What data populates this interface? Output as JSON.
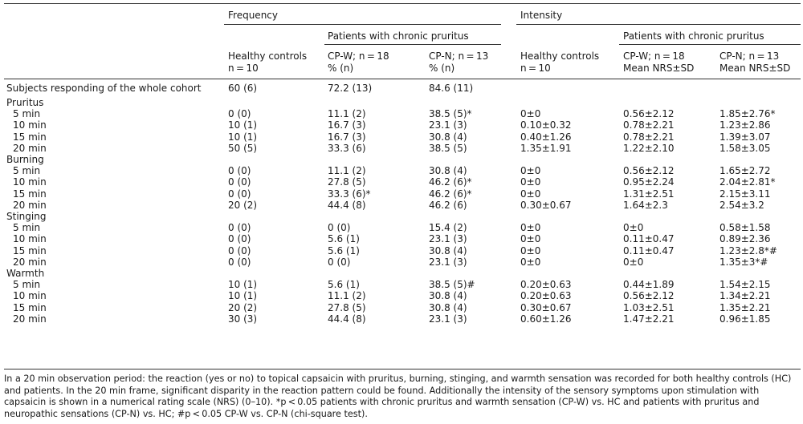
{
  "headers": {
    "frequency": "Frequency",
    "intensity": "Intensity",
    "patients_freq": "Patients with chronic pruritus",
    "patients_int": "Patients with chronic pruritus",
    "hc_freq_1": "Healthy controls",
    "hc_freq_2": "n = 10",
    "cpw_freq_1": "CP-W; n = 18",
    "cpw_freq_2": "% (n)",
    "cpn_freq_1": "CP-N; n = 13",
    "cpn_freq_2": "% (n)",
    "hc_int_1": "Healthy controls",
    "hc_int_2": "n = 10",
    "cpw_int_1": "CP-W; n = 18",
    "cpw_int_2": "Mean NRS±SD",
    "cpn_int_1": "CP-N; n = 13",
    "cpn_int_2": "Mean NRS±SD"
  },
  "whole_cohort": {
    "label": "Subjects responding of the whole cohort",
    "hc": "60 (6)",
    "cpw": "72.2 (13)",
    "cpn": "84.6 (11)"
  },
  "groups": [
    {
      "name": "Pruritus",
      "rows": [
        {
          "time": "5 min",
          "hc": "0 (0)",
          "cpw": "11.1 (2)",
          "cpn": "38.5 (5)*",
          "hc_i": "0±0",
          "cpw_i": "0.56±2.12",
          "cpn_i": "1.85±2.76*"
        },
        {
          "time": "10 min",
          "hc": "10 (1)",
          "cpw": "16.7 (3)",
          "cpn": "23.1 (3)",
          "hc_i": "0.10±0.32",
          "cpw_i": "0.78±2.21",
          "cpn_i": "1.23±2.86"
        },
        {
          "time": "15 min",
          "hc": "10 (1)",
          "cpw": "16.7 (3)",
          "cpn": "30.8 (4)",
          "hc_i": "0.40±1.26",
          "cpw_i": "0.78±2.21",
          "cpn_i": "1.39±3.07"
        },
        {
          "time": "20 min",
          "hc": "50 (5)",
          "cpw": "33.3 (6)",
          "cpn": "38.5 (5)",
          "hc_i": "1.35±1.91",
          "cpw_i": "1.22±2.10",
          "cpn_i": "1.58±3.05"
        }
      ]
    },
    {
      "name": "Burning",
      "rows": [
        {
          "time": "5 min",
          "hc": "0 (0)",
          "cpw": "11.1 (2)",
          "cpn": "30.8 (4)",
          "hc_i": "0±0",
          "cpw_i": "0.56±2.12",
          "cpn_i": "1.65±2.72"
        },
        {
          "time": "10 min",
          "hc": "0 (0)",
          "cpw": "27.8 (5)",
          "cpn": "46.2 (6)*",
          "hc_i": "0±0",
          "cpw_i": "0.95±2.24",
          "cpn_i": "2.04±2.81*"
        },
        {
          "time": "15 min",
          "hc": "0 (0)",
          "cpw": "33.3 (6)*",
          "cpn": "46.2 (6)*",
          "hc_i": "0±0",
          "cpw_i": "1.31±2.51",
          "cpn_i": "2.15±3.11"
        },
        {
          "time": "20 min",
          "hc": "20 (2)",
          "cpw": "44.4 (8)",
          "cpn": "46.2 (6)",
          "hc_i": "0.30±0.67",
          "cpw_i": "1.64±2.3",
          "cpn_i": "2.54±3.2"
        }
      ]
    },
    {
      "name": "Stinging",
      "rows": [
        {
          "time": "5 min",
          "hc": "0 (0)",
          "cpw": "0 (0)",
          "cpn": "15.4 (2)",
          "hc_i": "0±0",
          "cpw_i": "0±0",
          "cpn_i": "0.58±1.58"
        },
        {
          "time": "10 min",
          "hc": "0 (0)",
          "cpw": "5.6 (1)",
          "cpn": "23.1 (3)",
          "hc_i": "0±0",
          "cpw_i": "0.11±0.47",
          "cpn_i": "0.89±2.36"
        },
        {
          "time": "15 min",
          "hc": "0 (0)",
          "cpw": "5.6 (1)",
          "cpn": "30.8 (4)",
          "hc_i": "0±0",
          "cpw_i": "0.11±0.47",
          "cpn_i": "1.23±2.8*#"
        },
        {
          "time": "20 min",
          "hc": "0 (0)",
          "cpw": "0 (0)",
          "cpn": "23.1 (3)",
          "hc_i": "0±0",
          "cpw_i": "0±0",
          "cpn_i": "1.35±3*#"
        }
      ]
    },
    {
      "name": "Warmth",
      "rows": [
        {
          "time": "5 min",
          "hc": "10 (1)",
          "cpw": "5.6 (1)",
          "cpn": "38.5 (5)#",
          "hc_i": "0.20±0.63",
          "cpw_i": "0.44±1.89",
          "cpn_i": "1.54±2.15"
        },
        {
          "time": "10 min",
          "hc": "10 (1)",
          "cpw": "11.1 (2)",
          "cpn": "30.8 (4)",
          "hc_i": "0.20±0.63",
          "cpw_i": "0.56±2.12",
          "cpn_i": "1.34±2.21"
        },
        {
          "time": "15 min",
          "hc": "20 (2)",
          "cpw": "27.8 (5)",
          "cpn": "30.8 (4)",
          "hc_i": "0.30±0.67",
          "cpw_i": "1.03±2.51",
          "cpn_i": "1.35±2.21"
        },
        {
          "time": "20 min",
          "hc": "30 (3)",
          "cpw": "44.4 (8)",
          "cpn": "23.1 (3)",
          "hc_i": "0.60±1.26",
          "cpw_i": "1.47±2.21",
          "cpn_i": "0.96±1.85"
        }
      ]
    }
  ],
  "footnote": "In a 20 min observation period: the reaction (yes or no) to topical capsaicin with pruritus, burning, stinging, and warmth sensation was recorded for both healthy controls (HC) and patients. In the 20 min frame, significant disparity in the reaction pattern could be found. Additionally the intensity of the sensory symptoms upon stimulation with capsaicin is shown in a numerical rating scale (NRS) (0–10). *p < 0.05 patients with chronic pruritus and warmth sensation (CP-W) vs. HC and patients with pruritus and neuropathic sensations (CP-N) vs. HC; #p < 0.05 CP-W vs. CP-N (chi-square test)."
}
